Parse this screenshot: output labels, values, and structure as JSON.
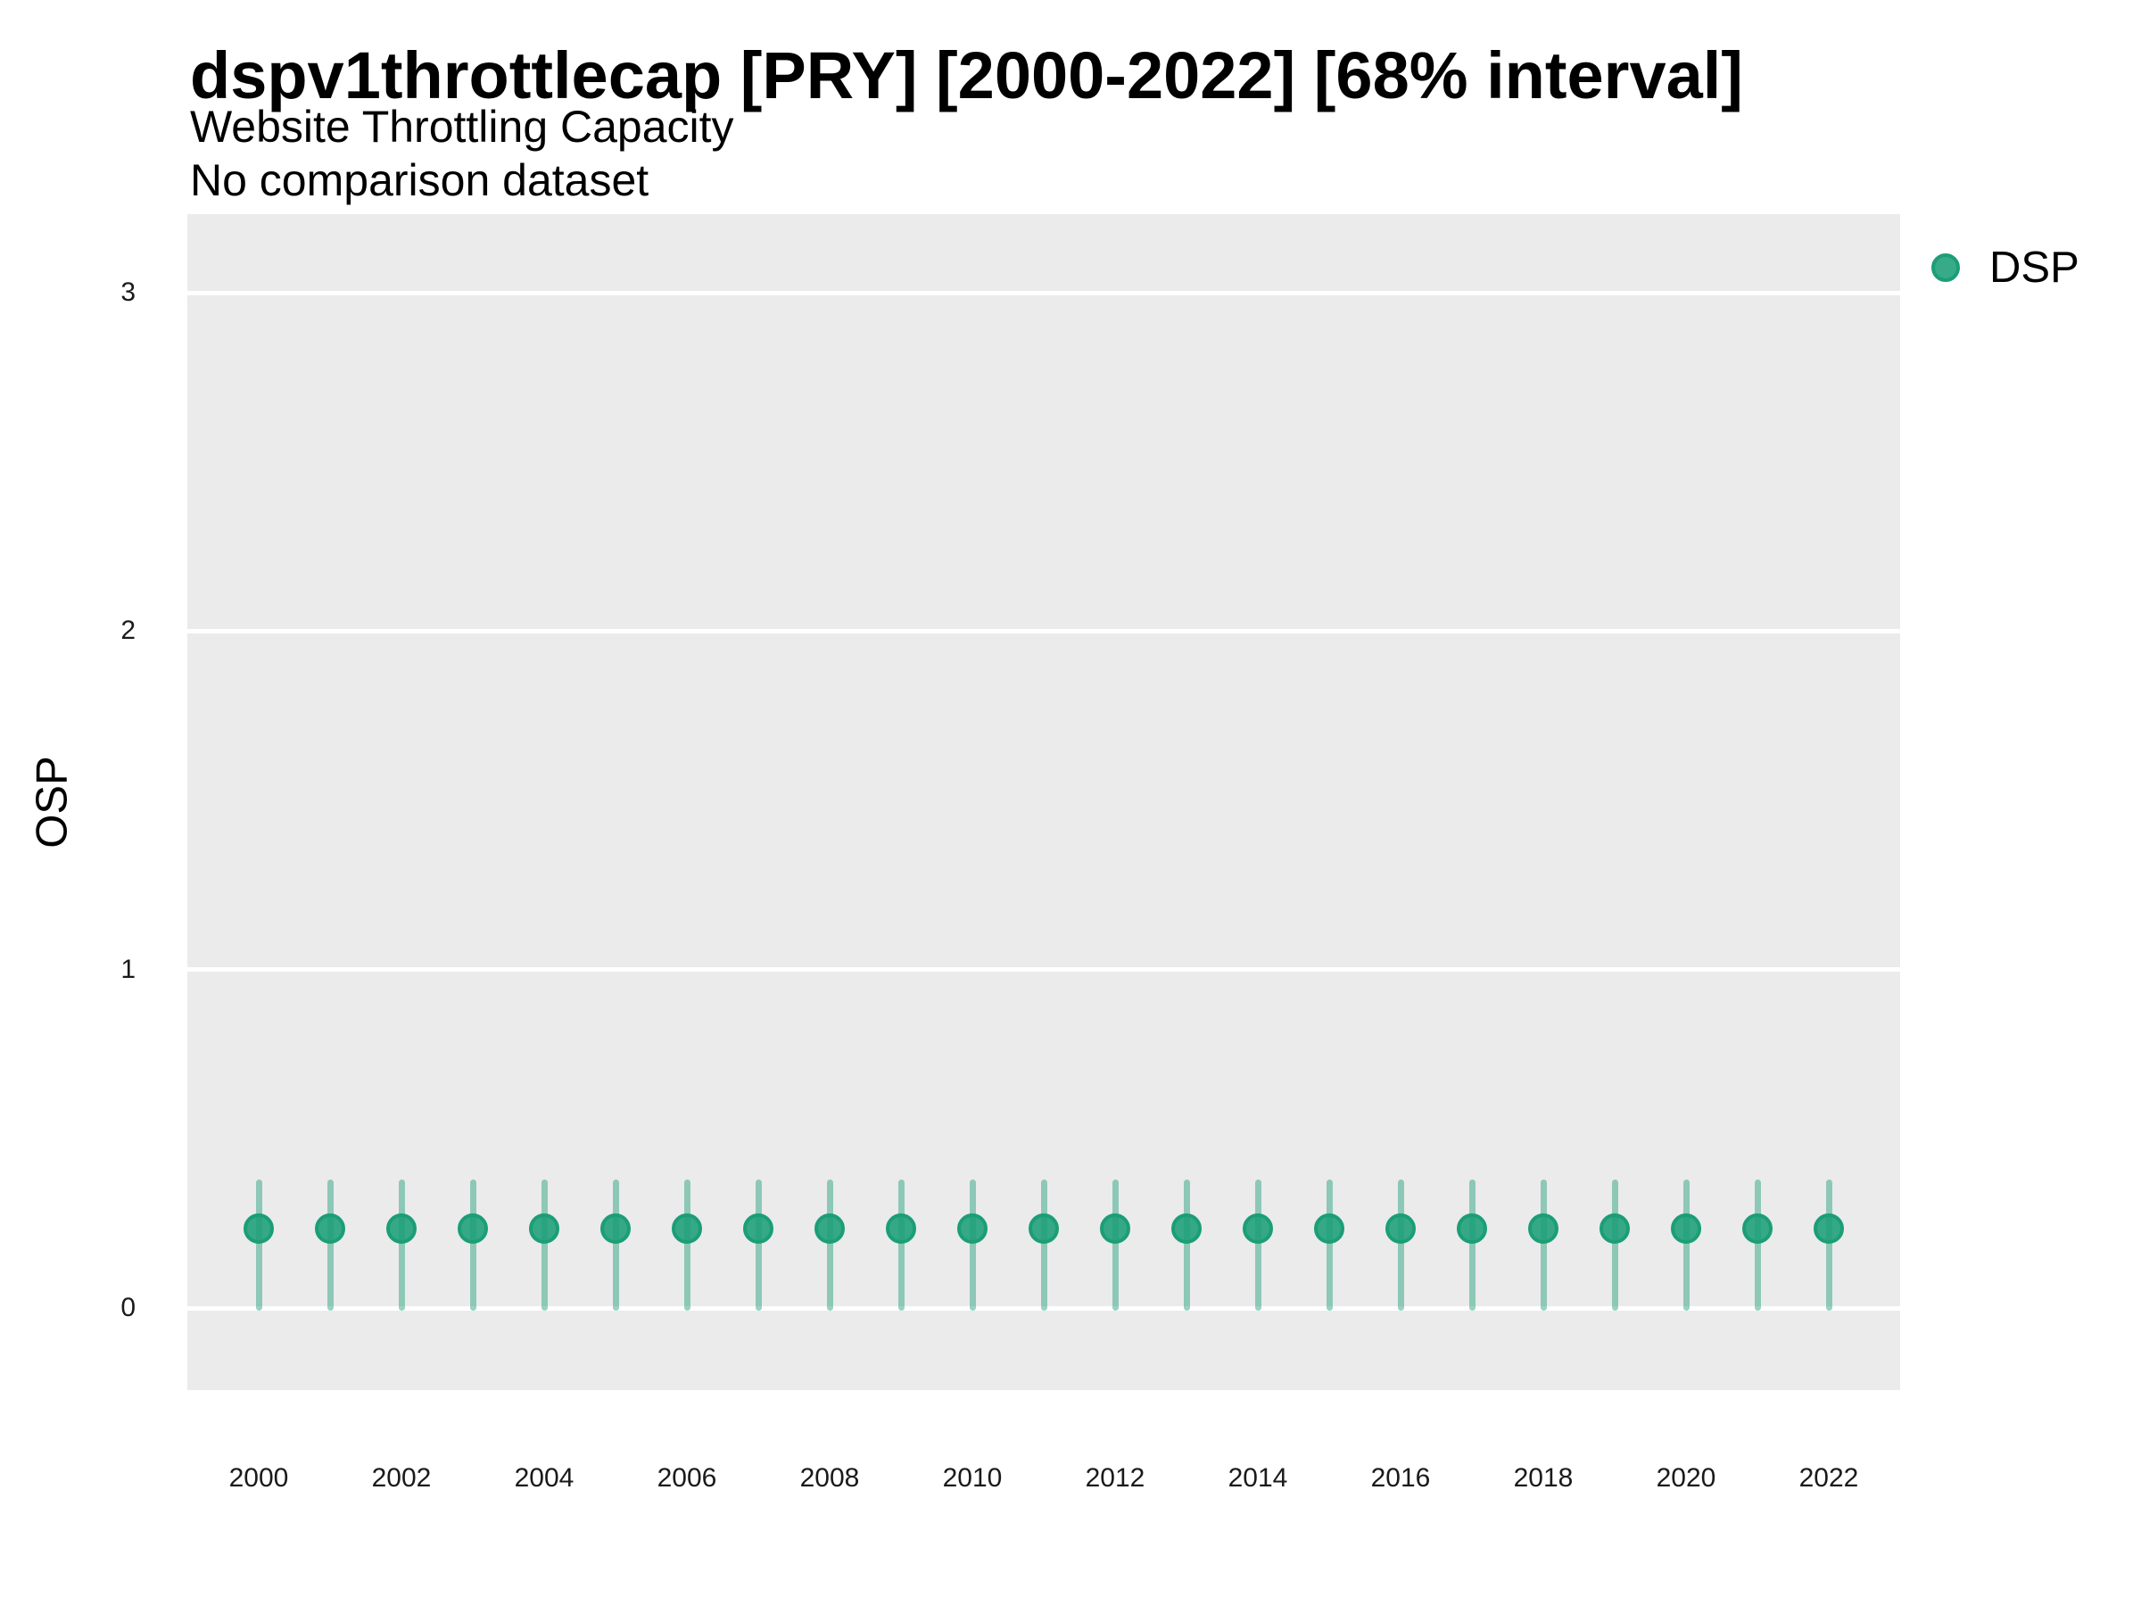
{
  "header": {
    "title": "dspv1throttlecap [PRY] [2000-2022] [68% interval]",
    "subtitle": "Website Throttling Capacity",
    "note": "No comparison dataset"
  },
  "y_axis": {
    "title": "OSP",
    "ticks": [
      0,
      1,
      2,
      3
    ]
  },
  "x_axis": {
    "tick_labels": [
      "2000",
      "2002",
      "2004",
      "2006",
      "2008",
      "2010",
      "2012",
      "2014",
      "2016",
      "2018",
      "2020",
      "2022"
    ]
  },
  "legend": {
    "position": "right-top",
    "items": [
      {
        "label": "DSP",
        "color": "#1b9e77",
        "marker": "circle"
      }
    ]
  },
  "colors": {
    "series_green": "#1b9e77",
    "panel_background": "#EBEBEB",
    "gridline": "#ffffff"
  },
  "chart_data": {
    "type": "scatter",
    "subtype": "pointrange",
    "title": "dspv1throttlecap [PRY] [2000-2022] [68% interval]",
    "subtitle": "Website Throttling Capacity",
    "note": "No comparison dataset",
    "xlabel": "",
    "ylabel": "OSP",
    "interval_level": "68%",
    "grid": "horizontal-major-only",
    "legend_position": "right-top",
    "x": [
      2000,
      2001,
      2002,
      2003,
      2004,
      2005,
      2006,
      2007,
      2008,
      2009,
      2010,
      2011,
      2012,
      2013,
      2014,
      2015,
      2016,
      2017,
      2018,
      2019,
      2020,
      2021,
      2022
    ],
    "series": [
      {
        "name": "DSP",
        "color": "#1b9e77",
        "values": [
          0.235,
          0.235,
          0.235,
          0.235,
          0.235,
          0.235,
          0.235,
          0.235,
          0.235,
          0.235,
          0.235,
          0.235,
          0.235,
          0.235,
          0.235,
          0.235,
          0.235,
          0.235,
          0.235,
          0.235,
          0.235,
          0.235,
          0.235
        ],
        "interval_low": [
          0.0,
          0.0,
          0.0,
          0.0,
          0.0,
          0.0,
          0.0,
          0.0,
          0.0,
          0.0,
          0.0,
          0.0,
          0.0,
          0.0,
          0.0,
          0.0,
          0.0,
          0.0,
          0.0,
          0.0,
          0.0,
          0.0,
          0.0
        ],
        "interval_high": [
          0.38,
          0.38,
          0.38,
          0.38,
          0.38,
          0.38,
          0.38,
          0.38,
          0.38,
          0.38,
          0.38,
          0.38,
          0.38,
          0.38,
          0.38,
          0.38,
          0.38,
          0.38,
          0.38,
          0.38,
          0.38,
          0.38,
          0.38
        ]
      }
    ],
    "ylim": [
      -0.24,
      3.23
    ],
    "yticks": [
      0,
      1,
      2,
      3
    ],
    "x_tick_labels": [
      "2000",
      "2002",
      "2004",
      "2006",
      "2008",
      "2010",
      "2012",
      "2014",
      "2016",
      "2018",
      "2020",
      "2022"
    ]
  }
}
